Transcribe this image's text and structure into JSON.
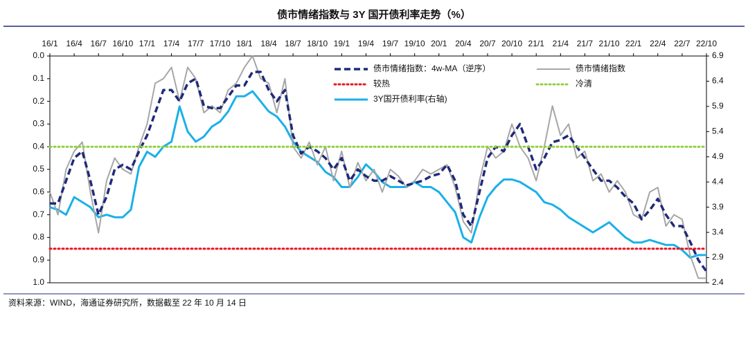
{
  "chart_data": {
    "type": "line",
    "title": "债市情绪指数与 3Y 国开债利率走势（%）",
    "source": "资料来源：WIND，海通证券研究所，数据截至 22 年 10 月 14 日",
    "categories": [
      "16/1",
      null,
      null,
      "16/4",
      null,
      null,
      "16/7",
      null,
      null,
      "16/10",
      null,
      null,
      "17/1",
      null,
      null,
      "17/4",
      null,
      null,
      "17/7",
      null,
      null,
      "17/10",
      null,
      null,
      "18/1",
      null,
      null,
      "18/4",
      null,
      null,
      "18/7",
      null,
      null,
      "18/10",
      null,
      null,
      "19/1",
      null,
      null,
      "19/4",
      null,
      null,
      "19/7",
      null,
      null,
      "19/10",
      null,
      null,
      "20/1",
      null,
      null,
      "20/4",
      null,
      null,
      "20/7",
      null,
      null,
      "20/10",
      null,
      null,
      "21/1",
      null,
      null,
      "21/4",
      null,
      null,
      "21/7",
      null,
      null,
      "21/10",
      null,
      null,
      "22/1",
      null,
      null,
      "22/4",
      null,
      null,
      "22/7",
      null,
      null,
      "22/10"
    ],
    "ylim": [
      0,
      1
    ],
    "y_inverted": true,
    "yticks": [
      {
        "value": 0,
        "label": "0.0"
      },
      0.1,
      0.2,
      0.3,
      0.4,
      0.5,
      0.6,
      0.7,
      0.8,
      0.9,
      {
        "value": 1,
        "label": "1.0"
      }
    ],
    "y2lim": [
      2.4,
      6.9
    ],
    "y2ticks": [
      2.4,
      2.9,
      3.4,
      3.9,
      4.4,
      4.9,
      5.4,
      5.9,
      6.4,
      6.9
    ],
    "series": [
      {
        "name": "债市情绪指数：4w-MA（逆序）",
        "color": "#1f2a7a",
        "style": "dashed",
        "values": [
          0.65,
          0.65,
          0.55,
          0.45,
          0.42,
          0.55,
          0.7,
          0.62,
          0.5,
          0.48,
          0.5,
          0.42,
          0.35,
          0.25,
          0.15,
          0.15,
          0.2,
          0.12,
          0.1,
          0.22,
          0.23,
          0.23,
          0.18,
          0.13,
          0.13,
          0.07,
          0.07,
          0.15,
          0.2,
          0.15,
          0.35,
          0.43,
          0.4,
          0.42,
          0.45,
          0.5,
          0.45,
          0.55,
          0.5,
          0.53,
          0.55,
          0.55,
          0.53,
          0.55,
          0.57,
          0.56,
          0.55,
          0.53,
          0.52,
          0.48,
          0.55,
          0.7,
          0.75,
          0.6,
          0.45,
          0.4,
          0.42,
          0.35,
          0.3,
          0.4,
          0.5,
          0.45,
          0.38,
          0.37,
          0.35,
          0.4,
          0.45,
          0.5,
          0.55,
          0.55,
          0.58,
          0.62,
          0.65,
          0.72,
          0.68,
          0.63,
          0.7,
          0.75,
          0.75,
          0.82,
          0.9,
          0.95
        ]
      },
      {
        "name": "债市情绪指数",
        "color": "#a6a6a6",
        "style": "solid",
        "values": [
          0.6,
          0.7,
          0.5,
          0.42,
          0.38,
          0.6,
          0.78,
          0.55,
          0.45,
          0.5,
          0.52,
          0.4,
          0.3,
          0.12,
          0.1,
          0.05,
          0.2,
          0.05,
          0.1,
          0.25,
          0.22,
          0.25,
          0.15,
          0.12,
          0.05,
          0.0,
          0.1,
          0.12,
          0.25,
          0.1,
          0.4,
          0.45,
          0.38,
          0.48,
          0.4,
          0.55,
          0.42,
          0.58,
          0.47,
          0.55,
          0.5,
          0.6,
          0.5,
          0.53,
          0.58,
          0.55,
          0.5,
          0.52,
          0.5,
          0.48,
          0.58,
          0.73,
          0.78,
          0.55,
          0.4,
          0.45,
          0.42,
          0.3,
          0.4,
          0.45,
          0.55,
          0.4,
          0.22,
          0.35,
          0.3,
          0.45,
          0.42,
          0.55,
          0.52,
          0.6,
          0.55,
          0.6,
          0.7,
          0.72,
          0.6,
          0.58,
          0.75,
          0.7,
          0.72,
          0.88,
          0.98,
          0.98
        ]
      },
      {
        "name": "较热",
        "color": "#e8141e",
        "style": "dotted",
        "value": 0.85
      },
      {
        "name": "冷清",
        "color": "#8fd13f",
        "style": "dotted",
        "value": 0.4
      },
      {
        "name": "3Y国开债利率(右轴)",
        "color": "#1ab0e8",
        "style": "solid",
        "axis": "y2",
        "values": [
          3.9,
          3.85,
          3.75,
          4.1,
          4.0,
          3.9,
          3.7,
          3.75,
          3.7,
          3.7,
          3.85,
          4.7,
          5.0,
          4.9,
          5.1,
          5.2,
          5.9,
          5.4,
          5.2,
          5.3,
          5.5,
          5.6,
          5.8,
          6.1,
          6.1,
          6.2,
          6.0,
          5.8,
          5.7,
          5.5,
          5.2,
          5.0,
          4.9,
          4.8,
          4.6,
          4.5,
          4.3,
          4.3,
          4.5,
          4.75,
          4.6,
          4.4,
          4.3,
          4.3,
          4.3,
          4.4,
          4.3,
          4.3,
          4.2,
          4.0,
          3.8,
          3.3,
          3.2,
          3.7,
          4.1,
          4.3,
          4.45,
          4.45,
          4.4,
          4.3,
          4.2,
          4.0,
          3.95,
          3.85,
          3.7,
          3.6,
          3.5,
          3.4,
          3.5,
          3.6,
          3.45,
          3.3,
          3.2,
          3.2,
          3.25,
          3.2,
          3.15,
          3.15,
          3.05,
          2.9,
          2.95,
          2.95
        ]
      }
    ]
  }
}
